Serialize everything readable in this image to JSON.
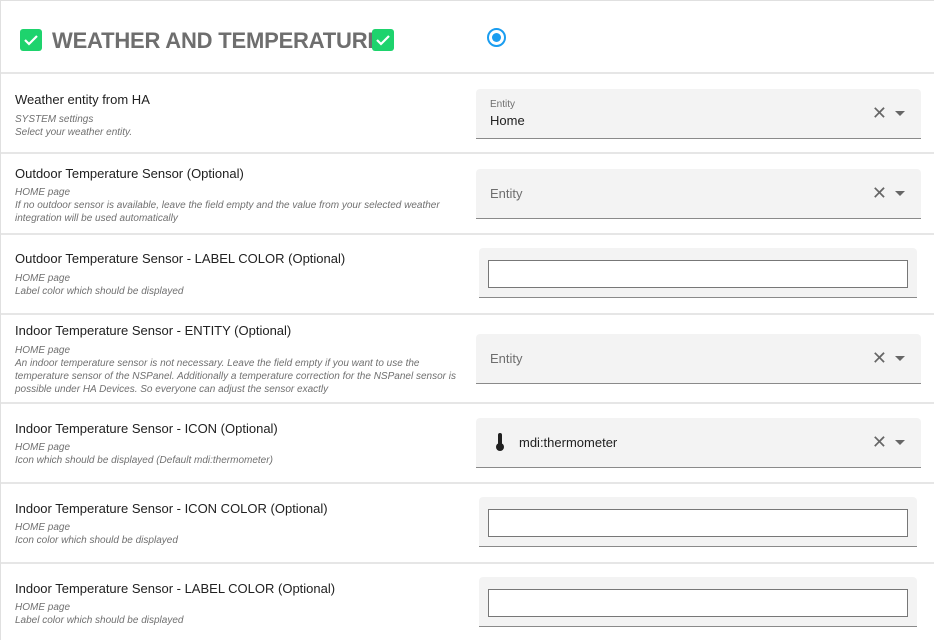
{
  "header": {
    "title": "WEATHER AND TEMPERATURE",
    "accent": "#1ed36d",
    "radio_color": "#1a9df0"
  },
  "rows": [
    {
      "label": "Weather entity from HA",
      "desc": [
        "SYSTEM settings",
        "Select your weather entity."
      ],
      "field": {
        "type": "combo",
        "floating_label": "Entity",
        "value": "Home"
      }
    },
    {
      "label": "Outdoor Temperature Sensor (Optional)",
      "desc": [
        "HOME page",
        "If no outdoor sensor is available, leave the field empty and the value from your selected weather integration will be used automatically"
      ],
      "field": {
        "type": "combo",
        "placeholder": "Entity"
      }
    },
    {
      "label": "Outdoor Temperature Sensor - LABEL COLOR (Optional)",
      "desc": [
        "HOME page",
        "Label color which should be displayed"
      ],
      "field": {
        "type": "text",
        "value": ""
      }
    },
    {
      "label": "Indoor Temperature Sensor - ENTITY (Optional)",
      "desc": [
        "HOME page",
        "An indoor temperature sensor is not necessary. Leave the field empty if you want to use the temperature sensor of the NSPanel. Additionally a temperature correction for the NSPanel sensor is possible under HA Devices. So everyone can adjust the sensor exactly"
      ],
      "field": {
        "type": "combo",
        "placeholder": "Entity"
      }
    },
    {
      "label": "Indoor Temperature Sensor - ICON (Optional)",
      "desc": [
        "HOME page",
        "Icon which should be displayed (Default mdi:thermometer)"
      ],
      "field": {
        "type": "icon",
        "value": "mdi:thermometer",
        "icon": "thermometer-icon"
      }
    },
    {
      "label": "Indoor Temperature Sensor - ICON COLOR (Optional)",
      "desc": [
        "HOME page",
        "Icon color which should be displayed"
      ],
      "field": {
        "type": "text",
        "value": ""
      }
    },
    {
      "label": "Indoor Temperature Sensor - LABEL COLOR (Optional)",
      "desc": [
        "HOME page",
        "Label color which should be displayed"
      ],
      "field": {
        "type": "text",
        "value": ""
      }
    }
  ]
}
